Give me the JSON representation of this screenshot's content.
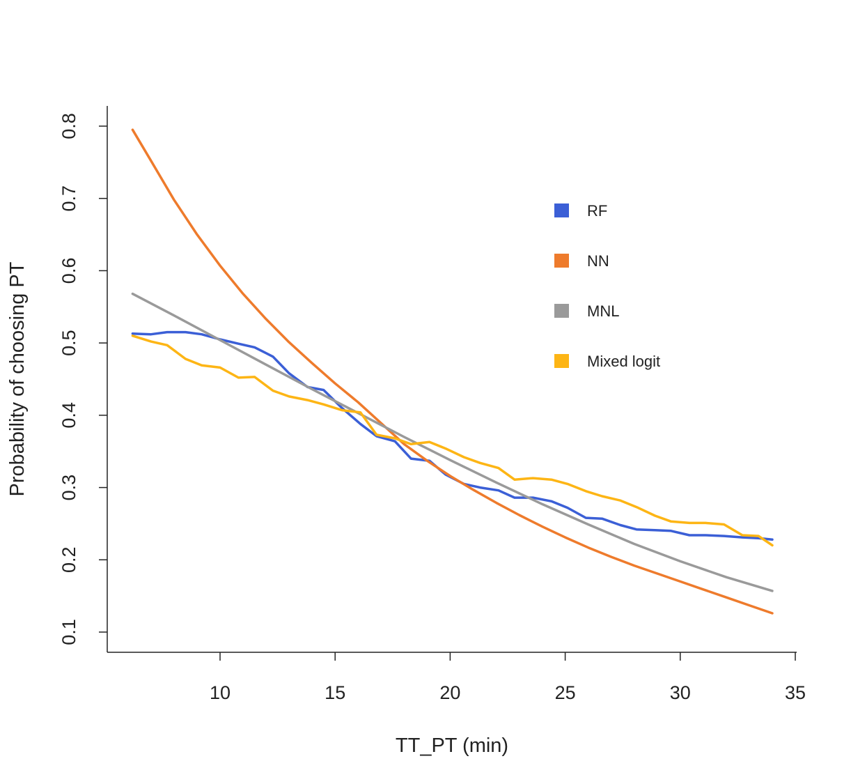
{
  "chart_data": {
    "type": "line",
    "title": "",
    "xlabel": "TT_PT (min)",
    "ylabel": "Probability of choosing PT",
    "xlim": [
      5,
      35.2
    ],
    "ylim": [
      0.08,
      0.83
    ],
    "xticks": [
      10,
      15,
      20,
      25,
      30,
      35
    ],
    "yticks": [
      0.1,
      0.2,
      0.3,
      0.4,
      0.5,
      0.6,
      0.7,
      0.8
    ],
    "xtick_labels": [
      "10",
      "15",
      "20",
      "25",
      "30",
      "35"
    ],
    "ytick_labels": [
      "0.1",
      "0.2",
      "0.3",
      "0.4",
      "0.5",
      "0.6",
      "0.7",
      "0.8"
    ],
    "grid": false,
    "legend_position": "right of center, upper half",
    "series": [
      {
        "name": "RF",
        "color": "#3b5fd6",
        "x": [
          6.2,
          7.0,
          7.7,
          8.5,
          9.2,
          10.0,
          10.8,
          11.5,
          12.3,
          13.0,
          13.8,
          14.5,
          15.3,
          16.1,
          16.8,
          17.6,
          18.3,
          19.1,
          19.8,
          20.6,
          21.3,
          22.1,
          22.8,
          23.6,
          24.4,
          25.1,
          25.9,
          26.6,
          27.4,
          28.1,
          28.9,
          29.6,
          30.4,
          31.1,
          31.9,
          32.7,
          33.4,
          34.0
        ],
        "y": [
          0.513,
          0.512,
          0.515,
          0.515,
          0.512,
          0.505,
          0.499,
          0.494,
          0.481,
          0.458,
          0.439,
          0.435,
          0.41,
          0.388,
          0.371,
          0.364,
          0.34,
          0.337,
          0.318,
          0.305,
          0.3,
          0.296,
          0.286,
          0.286,
          0.281,
          0.272,
          0.258,
          0.257,
          0.248,
          0.242,
          0.241,
          0.24,
          0.234,
          0.234,
          0.233,
          0.231,
          0.23,
          0.228
        ]
      },
      {
        "name": "NN",
        "color": "#ee7b2c",
        "x": [
          6.2,
          7.0,
          8.0,
          9.0,
          10.0,
          11.0,
          12.0,
          13.0,
          14.0,
          15.0,
          16.0,
          17.0,
          18.0,
          19.0,
          20.0,
          21.0,
          22.0,
          23.0,
          24.0,
          25.0,
          26.0,
          27.0,
          28.0,
          29.0,
          30.0,
          31.0,
          32.0,
          33.0,
          34.0
        ],
        "y": [
          0.795,
          0.752,
          0.698,
          0.65,
          0.607,
          0.568,
          0.533,
          0.501,
          0.472,
          0.444,
          0.418,
          0.389,
          0.36,
          0.337,
          0.316,
          0.297,
          0.279,
          0.262,
          0.246,
          0.231,
          0.217,
          0.204,
          0.192,
          0.181,
          0.17,
          0.159,
          0.148,
          0.137,
          0.126
        ]
      },
      {
        "name": "MNL",
        "color": "#9a9a9a",
        "x": [
          6.2,
          8.0,
          10.0,
          12.0,
          14.0,
          16.0,
          18.0,
          20.0,
          22.0,
          24.0,
          26.0,
          28.0,
          30.0,
          32.0,
          34.0
        ],
        "y": [
          0.568,
          0.538,
          0.504,
          0.47,
          0.436,
          0.403,
          0.37,
          0.338,
          0.307,
          0.277,
          0.249,
          0.222,
          0.198,
          0.176,
          0.157
        ]
      },
      {
        "name": "Mixed logit",
        "color": "#fdb515",
        "x": [
          6.2,
          7.0,
          7.7,
          8.5,
          9.2,
          10.0,
          10.8,
          11.5,
          12.3,
          13.0,
          13.8,
          14.5,
          15.3,
          16.1,
          16.8,
          17.6,
          18.3,
          19.1,
          19.8,
          20.6,
          21.3,
          22.1,
          22.8,
          23.6,
          24.4,
          25.1,
          25.9,
          26.6,
          27.4,
          28.1,
          28.9,
          29.6,
          30.4,
          31.1,
          31.9,
          32.7,
          33.4,
          34.0
        ],
        "y": [
          0.51,
          0.502,
          0.497,
          0.478,
          0.469,
          0.466,
          0.452,
          0.453,
          0.434,
          0.426,
          0.421,
          0.415,
          0.407,
          0.404,
          0.373,
          0.368,
          0.36,
          0.363,
          0.354,
          0.342,
          0.334,
          0.327,
          0.311,
          0.313,
          0.311,
          0.305,
          0.295,
          0.288,
          0.282,
          0.273,
          0.261,
          0.253,
          0.251,
          0.251,
          0.249,
          0.234,
          0.233,
          0.22
        ]
      }
    ]
  }
}
